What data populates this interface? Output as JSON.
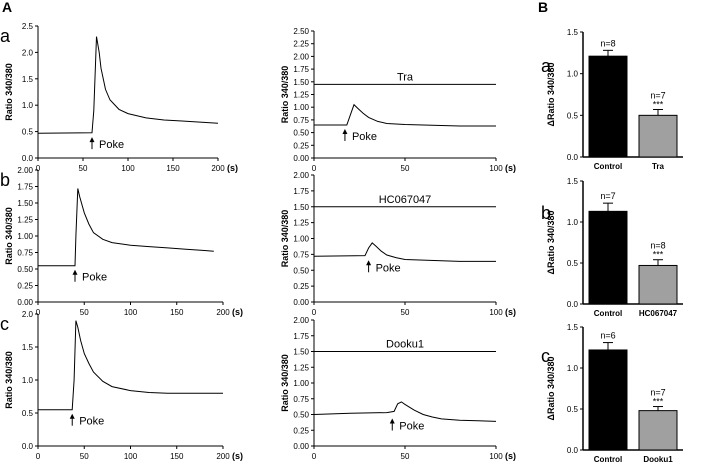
{
  "figure": {
    "panel_A": "A",
    "panel_B": "B",
    "rows": [
      "a",
      "b",
      "c"
    ]
  },
  "chart_data": [
    {
      "id": "A-a-left",
      "type": "line",
      "ylabel": "Ratio 340/380",
      "x_unit": "(s)",
      "xlim": [
        0,
        200
      ],
      "ylim": [
        0,
        2.5
      ],
      "xticks": [
        0,
        50,
        100,
        150,
        200
      ],
      "yticks": [
        0,
        0.5,
        1.0,
        1.5,
        2.0,
        2.5
      ],
      "annotation": "Poke",
      "arrow_x": 60,
      "series": [
        {
          "x": [
            0,
            60,
            62,
            65,
            68,
            70,
            75,
            80,
            90,
            100,
            120,
            140,
            160,
            180,
            200
          ],
          "y": [
            0.47,
            0.48,
            0.9,
            2.3,
            2.0,
            1.7,
            1.3,
            1.1,
            0.92,
            0.84,
            0.76,
            0.72,
            0.7,
            0.68,
            0.66
          ]
        }
      ]
    },
    {
      "id": "A-a-right",
      "type": "line",
      "ylabel": "Ratio 340/380",
      "x_unit": "(s)",
      "xlim": [
        0,
        100
      ],
      "ylim": [
        0,
        2.5
      ],
      "xticks": [
        0,
        50,
        100
      ],
      "yticks": [
        0,
        0.25,
        0.5,
        0.75,
        1.0,
        1.25,
        1.5,
        1.75,
        2.0,
        2.25,
        2.5
      ],
      "annotation": "Poke",
      "arrow_x": 17,
      "drug_label": "Tra",
      "drug_level": 1.45,
      "series": [
        {
          "x": [
            0,
            18,
            20,
            22,
            24,
            27,
            30,
            35,
            40,
            50,
            60,
            70,
            80,
            90,
            100
          ],
          "y": [
            0.65,
            0.65,
            0.85,
            1.05,
            0.98,
            0.88,
            0.8,
            0.72,
            0.68,
            0.66,
            0.65,
            0.64,
            0.63,
            0.63,
            0.63
          ]
        }
      ]
    },
    {
      "id": "A-b-left",
      "type": "line",
      "ylabel": "Ratio 340/380",
      "x_unit": "(s)",
      "xlim": [
        0,
        200
      ],
      "ylim": [
        0,
        2.0
      ],
      "xticks": [
        0,
        50,
        100,
        150,
        200
      ],
      "yticks": [
        0,
        0.25,
        0.5,
        0.75,
        1.0,
        1.25,
        1.5,
        1.75,
        2.0
      ],
      "annotation": "Poke",
      "arrow_x": 40,
      "series": [
        {
          "x": [
            0,
            40,
            41,
            43,
            45,
            50,
            55,
            60,
            70,
            80,
            100,
            120,
            140,
            160,
            180,
            190
          ],
          "y": [
            0.55,
            0.55,
            1.0,
            1.72,
            1.6,
            1.35,
            1.18,
            1.05,
            0.95,
            0.9,
            0.86,
            0.84,
            0.82,
            0.8,
            0.78,
            0.77
          ]
        }
      ]
    },
    {
      "id": "A-b-right",
      "type": "line",
      "ylabel": "Ratio 340/380",
      "x_unit": "(s)",
      "xlim": [
        0,
        100
      ],
      "ylim": [
        0,
        2.0
      ],
      "xticks": [
        0,
        50,
        100
      ],
      "yticks": [
        0,
        0.25,
        0.5,
        0.75,
        1.0,
        1.25,
        1.5,
        1.75,
        2.0
      ],
      "annotation": "Poke",
      "arrow_x": 30,
      "drug_label": "HC067047",
      "drug_level": 1.5,
      "series": [
        {
          "x": [
            0,
            28,
            30,
            32,
            34,
            37,
            40,
            45,
            50,
            60,
            70,
            80,
            90,
            100
          ],
          "y": [
            0.72,
            0.73,
            0.85,
            0.93,
            0.88,
            0.8,
            0.74,
            0.7,
            0.67,
            0.66,
            0.65,
            0.64,
            0.64,
            0.64
          ]
        }
      ]
    },
    {
      "id": "A-c-left",
      "type": "line",
      "ylabel": "Ratio 340/380",
      "x_unit": "(s)",
      "xlim": [
        0,
        200
      ],
      "ylim": [
        0,
        2.0
      ],
      "xticks": [
        0,
        50,
        100,
        150,
        200
      ],
      "yticks": [
        0,
        0.5,
        1.0,
        1.5,
        2.0
      ],
      "annotation": "Poke",
      "arrow_x": 37,
      "series": [
        {
          "x": [
            0,
            37,
            39,
            41,
            43,
            46,
            50,
            55,
            60,
            70,
            80,
            100,
            120,
            140,
            160,
            180,
            200
          ],
          "y": [
            0.55,
            0.55,
            1.0,
            1.9,
            1.8,
            1.6,
            1.4,
            1.25,
            1.12,
            0.98,
            0.9,
            0.84,
            0.81,
            0.8,
            0.8,
            0.8,
            0.8
          ]
        }
      ]
    },
    {
      "id": "A-c-right",
      "type": "line",
      "ylabel": "Ratio 340/380",
      "x_unit": "(s)",
      "xlim": [
        0,
        100
      ],
      "ylim": [
        0,
        2.0
      ],
      "xticks": [
        0,
        50,
        100
      ],
      "yticks": [
        0,
        0.25,
        0.5,
        0.75,
        1.0,
        1.25,
        1.5,
        1.75,
        2.0
      ],
      "annotation": "Poke",
      "arrow_x": 43,
      "drug_label": "Dooku1",
      "drug_level": 1.5,
      "series": [
        {
          "x": [
            0,
            20,
            40,
            44,
            46,
            48,
            50,
            55,
            60,
            65,
            70,
            80,
            90,
            100
          ],
          "y": [
            0.5,
            0.52,
            0.53,
            0.55,
            0.67,
            0.7,
            0.66,
            0.57,
            0.5,
            0.46,
            0.43,
            0.41,
            0.4,
            0.39
          ]
        }
      ]
    },
    {
      "id": "B-a",
      "type": "bar",
      "ylabel": "ΔRatio 340/380",
      "ylim": [
        0,
        1.5
      ],
      "yticks": [
        0,
        0.5,
        1.0,
        1.5
      ],
      "categories": [
        "Control",
        "Tra"
      ],
      "values": [
        1.21,
        0.5
      ],
      "errors": [
        0.07,
        0.07
      ],
      "n_labels": [
        "n=8",
        "n=7"
      ],
      "significance": [
        "",
        "***"
      ],
      "colors": [
        "#000000",
        "#a0a0a0"
      ]
    },
    {
      "id": "B-b",
      "type": "bar",
      "ylabel": "ΔRatio 340/380",
      "ylim": [
        0,
        1.5
      ],
      "yticks": [
        0,
        0.5,
        1.0,
        1.5
      ],
      "categories": [
        "Control",
        "HC067047"
      ],
      "values": [
        1.13,
        0.47
      ],
      "errors": [
        0.1,
        0.07
      ],
      "n_labels": [
        "n=7",
        "n=8"
      ],
      "significance": [
        "",
        "***"
      ],
      "colors": [
        "#000000",
        "#a0a0a0"
      ]
    },
    {
      "id": "B-c",
      "type": "bar",
      "ylabel": "ΔRatio 340/380",
      "ylim": [
        0,
        1.5
      ],
      "yticks": [
        0,
        0.5,
        1.0,
        1.5
      ],
      "categories": [
        "Control",
        "Dooku1"
      ],
      "values": [
        1.22,
        0.48
      ],
      "errors": [
        0.09,
        0.05
      ],
      "n_labels": [
        "n=6",
        "n=7"
      ],
      "significance": [
        "",
        "***"
      ],
      "colors": [
        "#000000",
        "#a0a0a0"
      ]
    }
  ]
}
